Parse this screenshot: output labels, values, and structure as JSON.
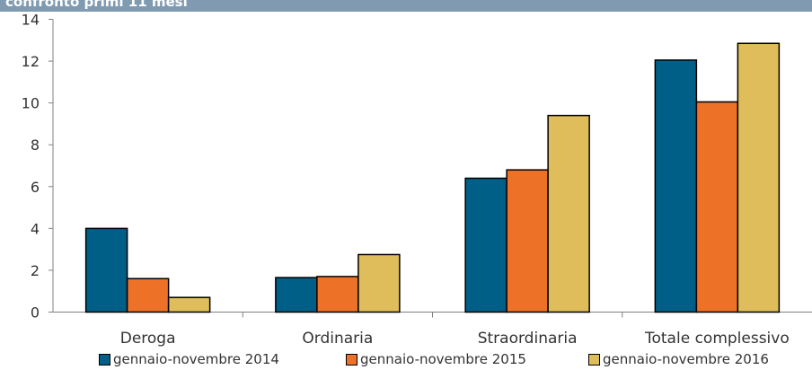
{
  "chart_data": {
    "type": "bar",
    "title": "confronto primi 11 mesi",
    "categories": [
      "Deroga",
      "Ordinaria",
      "Straordinaria",
      "Totale complessivo"
    ],
    "series": [
      {
        "name": "gennaio-novembre 2014",
        "color": "#005f86",
        "values": [
          4.0,
          1.65,
          6.4,
          12.05
        ]
      },
      {
        "name": "gennaio-novembre 2015",
        "color": "#ed7127",
        "values": [
          1.6,
          1.7,
          6.8,
          10.05
        ]
      },
      {
        "name": "gennaio-novembre 2016",
        "color": "#dfbd5a",
        "values": [
          0.7,
          2.75,
          9.4,
          12.85
        ]
      }
    ],
    "ylim": [
      0,
      14
    ],
    "yticks": [
      0,
      2,
      4,
      6,
      8,
      10,
      12,
      14
    ],
    "grid": false,
    "legend_position": "bottom"
  }
}
